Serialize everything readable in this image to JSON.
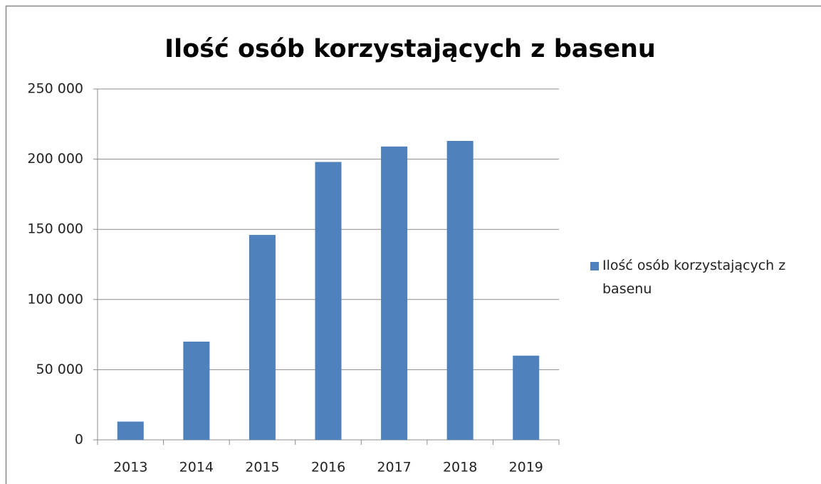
{
  "chart_data": {
    "type": "bar",
    "title": "Ilość osób korzystających z basenu",
    "categories": [
      "2013",
      "2014",
      "2015",
      "2016",
      "2017",
      "2018",
      "2019"
    ],
    "series": [
      {
        "name": "Ilość osób korzystających z basenu",
        "color": "#4f81bd",
        "values": [
          13000,
          70000,
          146000,
          198000,
          209000,
          213000,
          60000
        ]
      }
    ],
    "ylim": [
      0,
      250000
    ],
    "yticks": [
      0,
      {
        "value": 50000,
        "label": "50 000"
      },
      {
        "value": 100000,
        "label": "100 000"
      },
      {
        "value": 150000,
        "label": "150 000"
      },
      {
        "value": 200000,
        "label": "200 000"
      },
      {
        "value": 250000,
        "label": "250 000"
      }
    ],
    "grid": true,
    "legend": "right"
  }
}
